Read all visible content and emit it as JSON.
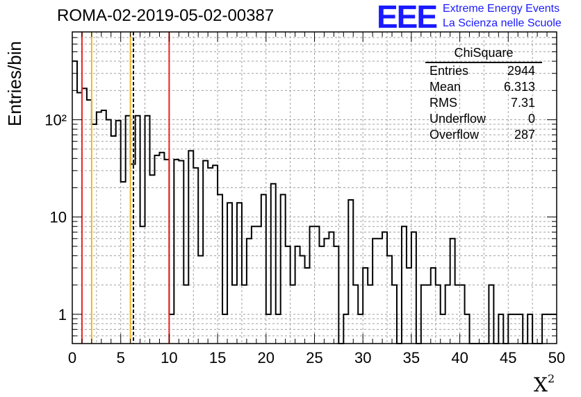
{
  "header": {
    "title": "ROMA-02-2019-05-02-00387",
    "logo_text": "EEE",
    "org_line1": "Extreme Energy Events",
    "org_line2": "La Scienza nelle Scuole"
  },
  "stats": {
    "title": "ChiSquare",
    "rows": [
      {
        "label": "Entries",
        "value": "2944"
      },
      {
        "label": "Mean",
        "value": "6.313"
      },
      {
        "label": "RMS",
        "value": "7.31"
      },
      {
        "label": "Underflow",
        "value": "0"
      },
      {
        "label": "Overflow",
        "value": "287"
      }
    ]
  },
  "axes": {
    "ylabel": "Entries/bin",
    "xlabel": "X",
    "xlabel_sup": "2"
  },
  "colors": {
    "histogram": "#000000",
    "red_line": "#e8231c",
    "orange_line": "#f0b81e",
    "mean_line": "#000000",
    "grid": "#a0a0a0"
  },
  "chart_data": {
    "type": "histogram",
    "x_range": [
      0,
      50
    ],
    "y_range": [
      0.5,
      800
    ],
    "y_scale": "log",
    "bin_width": 0.5,
    "grid": true,
    "x_ticks": [
      0,
      5,
      10,
      15,
      20,
      25,
      30,
      35,
      40,
      45,
      50
    ],
    "y_tick_labels": [
      {
        "value": 1,
        "label": "1"
      },
      {
        "value": 10,
        "label": "10"
      },
      {
        "value": 100,
        "label": "10²"
      }
    ],
    "counts": [
      400,
      190,
      210,
      160,
      90,
      120,
      125,
      100,
      68,
      98,
      23,
      110,
      35,
      110,
      8,
      110,
      27,
      43,
      46,
      39,
      1,
      39,
      38,
      2,
      48,
      32,
      4,
      38,
      32,
      34,
      17,
      1,
      14,
      2,
      14,
      2,
      6,
      8,
      8,
      17,
      1,
      22,
      1,
      17,
      5,
      2,
      5,
      4,
      3,
      8,
      8,
      5,
      6,
      7,
      5,
      0,
      1,
      15,
      2,
      1,
      3,
      2,
      6,
      6,
      7,
      4,
      2,
      0,
      8,
      3,
      7,
      0,
      2,
      2,
      3,
      2,
      1,
      2,
      6,
      2,
      2,
      1,
      0,
      0,
      0,
      0,
      2,
      0,
      1,
      0,
      1,
      1,
      1,
      0,
      1,
      0,
      0,
      1,
      1,
      1
    ],
    "vertical_lines": [
      {
        "x": 1,
        "color": "red"
      },
      {
        "x": 2,
        "color": "orange"
      },
      {
        "x": 6,
        "color": "orange"
      },
      {
        "x": 6.313,
        "color": "mean",
        "style": "dashed"
      },
      {
        "x": 10,
        "color": "red"
      }
    ]
  }
}
